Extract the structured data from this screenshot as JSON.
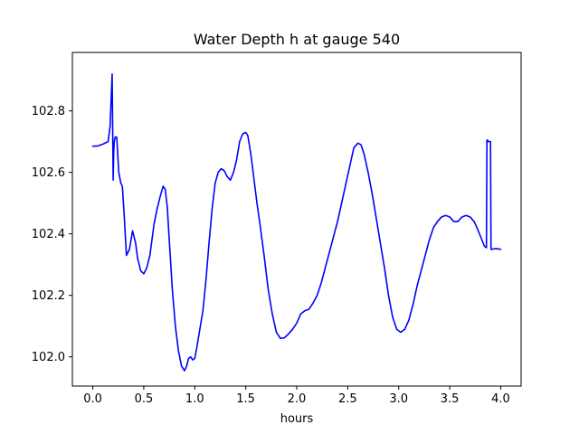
{
  "chart_data": {
    "type": "line",
    "title": "Water Depth h at gauge 540",
    "xlabel": "hours",
    "ylabel": "",
    "xlim": [
      -0.2,
      4.2
    ],
    "ylim": [
      101.905,
      102.99
    ],
    "xticks": [
      0.0,
      0.5,
      1.0,
      1.5,
      2.0,
      2.5,
      3.0,
      3.5,
      4.0
    ],
    "xtick_labels": [
      "0.0",
      "0.5",
      "1.0",
      "1.5",
      "2.0",
      "2.5",
      "3.0",
      "3.5",
      "4.0"
    ],
    "yticks": [
      102.0,
      102.2,
      102.4,
      102.6,
      102.8
    ],
    "ytick_labels": [
      "102.0",
      "102.2",
      "102.4",
      "102.6",
      "102.8"
    ],
    "grid": false,
    "series": [
      {
        "color": "#0000ff",
        "x": [
          0.0,
          0.05,
          0.1,
          0.15,
          0.17,
          0.19,
          0.2,
          0.205,
          0.21,
          0.22,
          0.235,
          0.255,
          0.275,
          0.29,
          0.31,
          0.33,
          0.36,
          0.39,
          0.42,
          0.44,
          0.47,
          0.5,
          0.53,
          0.56,
          0.58,
          0.6,
          0.63,
          0.66,
          0.69,
          0.71,
          0.73,
          0.75,
          0.78,
          0.81,
          0.84,
          0.87,
          0.9,
          0.92,
          0.94,
          0.96,
          0.98,
          1.0,
          1.02,
          1.05,
          1.08,
          1.11,
          1.14,
          1.17,
          1.2,
          1.23,
          1.26,
          1.29,
          1.32,
          1.35,
          1.38,
          1.41,
          1.44,
          1.47,
          1.5,
          1.52,
          1.55,
          1.58,
          1.61,
          1.64,
          1.68,
          1.72,
          1.76,
          1.8,
          1.84,
          1.88,
          1.92,
          1.96,
          2.0,
          2.04,
          2.08,
          2.12,
          2.16,
          2.2,
          2.24,
          2.28,
          2.32,
          2.36,
          2.4,
          2.44,
          2.48,
          2.52,
          2.56,
          2.6,
          2.63,
          2.66,
          2.7,
          2.74,
          2.78,
          2.82,
          2.86,
          2.9,
          2.94,
          2.98,
          3.02,
          3.06,
          3.1,
          3.14,
          3.18,
          3.22,
          3.26,
          3.3,
          3.34,
          3.38,
          3.42,
          3.46,
          3.5,
          3.54,
          3.58,
          3.62,
          3.66,
          3.7,
          3.74,
          3.78,
          3.81,
          3.84,
          3.86,
          3.865,
          3.87,
          3.88,
          3.9,
          3.905,
          3.91,
          3.95,
          4.0
        ],
        "y": [
          102.685,
          102.686,
          102.692,
          102.7,
          102.75,
          102.92,
          102.575,
          102.66,
          102.7,
          102.715,
          102.715,
          102.6,
          102.565,
          102.555,
          102.45,
          102.33,
          102.35,
          102.41,
          102.37,
          102.32,
          102.28,
          102.27,
          102.29,
          102.33,
          102.38,
          102.43,
          102.48,
          102.52,
          102.555,
          102.545,
          102.49,
          102.38,
          102.22,
          102.1,
          102.02,
          101.97,
          101.955,
          101.97,
          101.995,
          102.0,
          101.99,
          101.995,
          102.03,
          102.09,
          102.15,
          102.25,
          102.37,
          102.48,
          102.565,
          102.6,
          102.612,
          102.605,
          102.585,
          102.575,
          102.6,
          102.64,
          102.7,
          102.725,
          102.73,
          102.72,
          102.66,
          102.58,
          102.5,
          102.43,
          102.33,
          102.22,
          102.14,
          102.08,
          102.06,
          102.062,
          102.075,
          102.09,
          102.11,
          102.14,
          102.15,
          102.155,
          102.175,
          102.2,
          102.24,
          102.29,
          102.34,
          102.39,
          102.44,
          102.5,
          102.56,
          102.62,
          102.68,
          102.695,
          102.69,
          102.66,
          102.6,
          102.53,
          102.45,
          102.37,
          102.29,
          102.2,
          102.13,
          102.09,
          102.08,
          102.09,
          102.12,
          102.17,
          102.23,
          102.28,
          102.33,
          102.38,
          102.42,
          102.44,
          102.455,
          102.46,
          102.455,
          102.44,
          102.44,
          102.455,
          102.46,
          102.455,
          102.44,
          102.41,
          102.385,
          102.36,
          102.355,
          102.705,
          102.705,
          102.7,
          102.7,
          102.35,
          102.35,
          102.352,
          102.35
        ]
      }
    ]
  }
}
